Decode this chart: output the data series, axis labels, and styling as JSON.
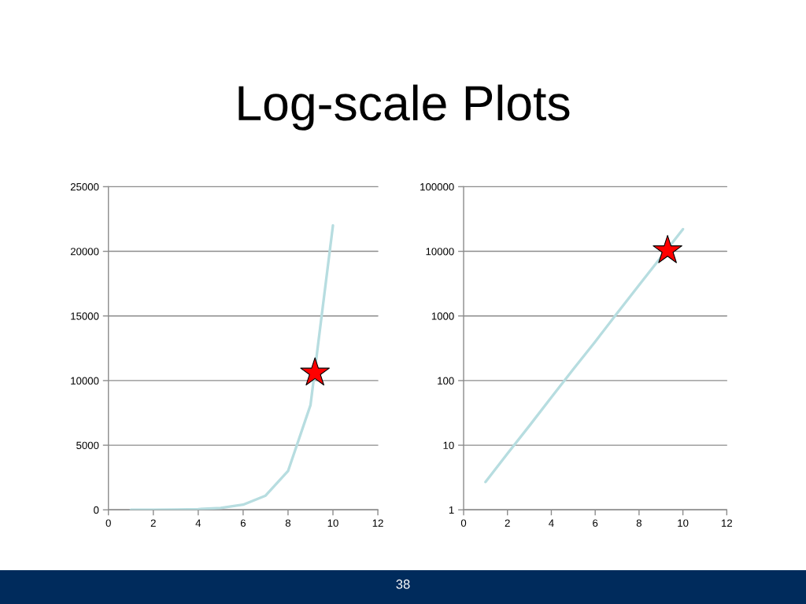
{
  "chart_data": [
    {
      "type": "line",
      "title": "Log-scale Plots",
      "x": [
        1,
        2,
        3,
        4,
        5,
        6,
        7,
        8,
        9,
        10
      ],
      "series": [
        {
          "color": "#b7dde0",
          "marker": "none",
          "line_style": "solid",
          "values": [
            2.7,
            7.4,
            20,
            55,
            150,
            400,
            1100,
            3000,
            8100,
            22000
          ]
        },
        {
          "type": "scatter",
          "color": "#ff0000",
          "marker": "star",
          "x": [
            9.2
          ],
          "values": [
            10600
          ]
        }
      ],
      "xlim": [
        0,
        12
      ],
      "xticks": [
        0,
        2,
        4,
        6,
        8,
        10,
        12
      ],
      "ylim": [
        0,
        25000
      ],
      "yticks": [
        0,
        5000,
        10000,
        15000,
        20000,
        25000
      ],
      "grid": "y"
    },
    {
      "type": "line",
      "log": true,
      "x": [
        1,
        2,
        3,
        4,
        5,
        6,
        7,
        8,
        9,
        10
      ],
      "series": [
        {
          "color": "#b7dde0",
          "marker": "none",
          "line_style": "solid",
          "values": [
            2.7,
            7.4,
            20,
            55,
            150,
            400,
            1100,
            3000,
            8100,
            22000
          ]
        },
        {
          "type": "scatter",
          "color": "#ff0000",
          "marker": "star",
          "x": [
            9.3
          ],
          "values": [
            10300
          ]
        }
      ],
      "xlim": [
        0,
        12
      ],
      "xticks": [
        0,
        2,
        4,
        6,
        8,
        10,
        12
      ],
      "ylim": [
        1,
        100000
      ],
      "yticks": [
        1,
        10,
        100,
        1000,
        10000,
        100000
      ],
      "grid": "y",
      "annotations": [
        "38"
      ]
    }
  ]
}
